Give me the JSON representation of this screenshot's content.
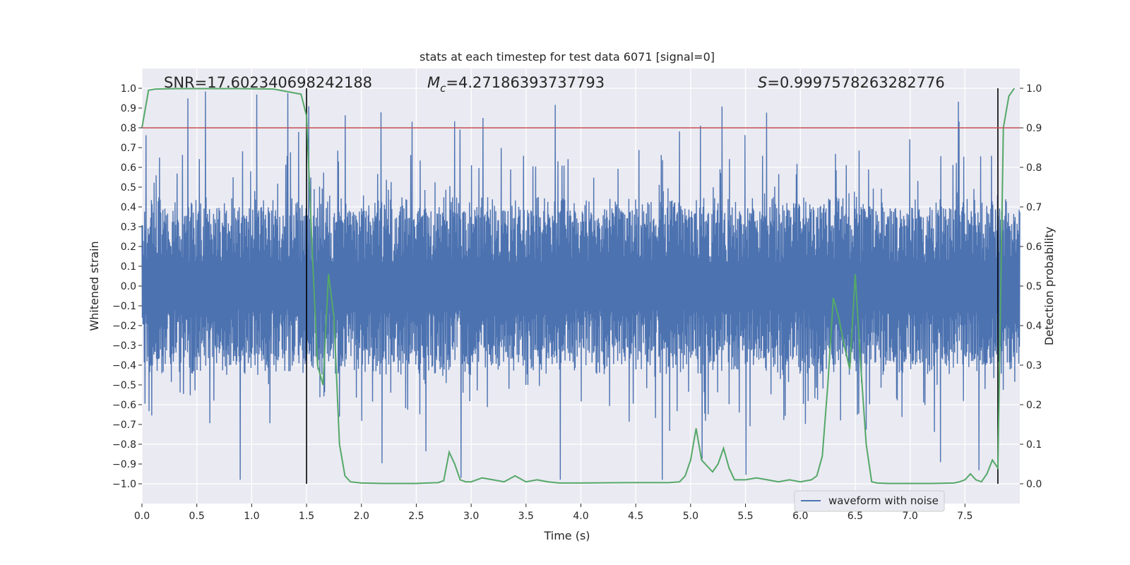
{
  "chart_data": {
    "type": "line",
    "title": "stats at each timestep for test data 6071 [signal=0]",
    "xlabel": "Time (s)",
    "ylabel": "Whitened strain",
    "y2label": "Detection probability",
    "xlim": [
      0.0,
      8.0
    ],
    "ylim": [
      -1.1,
      1.1
    ],
    "y2lim": [
      -0.05,
      1.05
    ],
    "xticks": [
      "0.0",
      "0.5",
      "1.0",
      "1.5",
      "2.0",
      "2.5",
      "3.0",
      "3.5",
      "4.0",
      "4.5",
      "5.0",
      "5.5",
      "6.0",
      "6.5",
      "7.0",
      "7.5"
    ],
    "yticks": [
      "1.0",
      "0.9",
      "0.8",
      "0.7",
      "0.6",
      "0.5",
      "0.4",
      "0.3",
      "0.2",
      "0.1",
      "0.0",
      "−0.1",
      "−0.2",
      "−0.3",
      "−0.4",
      "−0.5",
      "−0.6",
      "−0.7",
      "−0.8",
      "−0.9",
      "−1.0"
    ],
    "y2ticks": [
      "1.0",
      "0.9",
      "0.8",
      "0.7",
      "0.6",
      "0.5",
      "0.4",
      "0.3",
      "0.2",
      "0.1",
      "0.0"
    ],
    "grid": true,
    "legend": {
      "placement": "lower-right",
      "entries": [
        "waveform with noise"
      ]
    },
    "annotations": {
      "snr": "SNR=17.602340698242188",
      "mc_symbol": "M",
      "mc_sub": "c",
      "mc_value": "=4.27186393737793",
      "s_symbol": "S",
      "s_value": "=0.9997578263282776"
    },
    "threshold_line": {
      "y2": 0.9,
      "color": "#c44e52"
    },
    "vertical_lines": [
      1.5,
      7.8
    ],
    "colors": {
      "waveform": "#4c72b0",
      "probability": "#55a868",
      "threshold": "#c44e52",
      "vlines": "#000000",
      "plot_bg": "#eaeaf2",
      "grid": "#ffffff"
    },
    "series": [
      {
        "name": "waveform with noise",
        "kind": "noise",
        "envelope_upper": 0.42,
        "envelope_lower": -0.42,
        "peak_max": 0.99,
        "peak_min": -0.98
      },
      {
        "kind": "probability",
        "x": [
          0.0,
          0.06,
          0.12,
          0.3,
          0.6,
          0.9,
          1.2,
          1.45,
          1.5,
          1.55,
          1.6,
          1.65,
          1.7,
          1.75,
          1.8,
          1.85,
          1.9,
          2.0,
          2.2,
          2.5,
          2.6,
          2.7,
          2.75,
          2.8,
          2.85,
          2.9,
          2.95,
          3.0,
          3.1,
          3.2,
          3.3,
          3.4,
          3.5,
          3.6,
          3.7,
          3.8,
          4.0,
          4.5,
          4.8,
          4.9,
          4.95,
          5.0,
          5.05,
          5.1,
          5.2,
          5.25,
          5.3,
          5.35,
          5.4,
          5.5,
          5.6,
          5.7,
          5.8,
          5.9,
          6.0,
          6.1,
          6.15,
          6.2,
          6.25,
          6.3,
          6.35,
          6.4,
          6.45,
          6.5,
          6.55,
          6.6,
          6.65,
          6.7,
          6.8,
          7.0,
          7.2,
          7.4,
          7.45,
          7.5,
          7.55,
          7.6,
          7.65,
          7.7,
          7.75,
          7.8,
          7.85,
          7.9,
          7.95
        ],
        "y": [
          0.9,
          0.995,
          0.998,
          0.999,
          0.999,
          0.999,
          0.998,
          0.985,
          0.93,
          0.6,
          0.3,
          0.25,
          0.53,
          0.42,
          0.1,
          0.02,
          0.005,
          0.002,
          0.001,
          0.001,
          0.002,
          0.003,
          0.008,
          0.08,
          0.05,
          0.01,
          0.005,
          0.005,
          0.015,
          0.01,
          0.005,
          0.02,
          0.005,
          0.01,
          0.005,
          0.002,
          0.002,
          0.003,
          0.003,
          0.005,
          0.02,
          0.06,
          0.14,
          0.06,
          0.03,
          0.05,
          0.09,
          0.04,
          0.01,
          0.01,
          0.015,
          0.01,
          0.005,
          0.01,
          0.005,
          0.01,
          0.02,
          0.07,
          0.25,
          0.47,
          0.42,
          0.35,
          0.29,
          0.53,
          0.3,
          0.1,
          0.005,
          0.002,
          0.001,
          0.001,
          0.001,
          0.002,
          0.005,
          0.01,
          0.025,
          0.01,
          0.005,
          0.025,
          0.06,
          0.04,
          0.9,
          0.98,
          1.0
        ]
      }
    ]
  }
}
